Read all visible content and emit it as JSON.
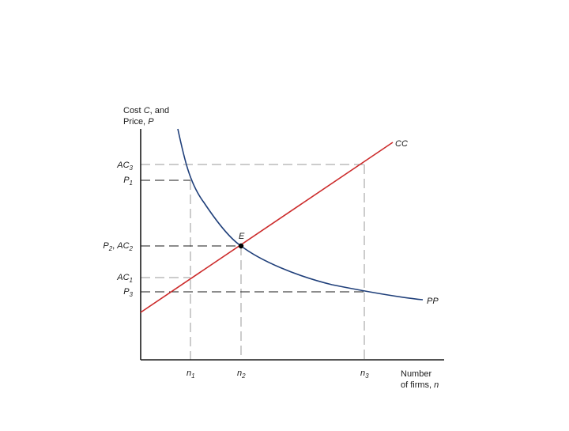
{
  "diagram": {
    "y_axis_label": {
      "line1": {
        "t1": "Cost ",
        "t2": "C",
        "t3": ", and"
      },
      "line2": {
        "t1": "Price, ",
        "t2": "P"
      }
    },
    "x_axis_label": {
      "line1": "Number",
      "line2": {
        "t1": "of firms, ",
        "t2": "n"
      }
    },
    "curves": {
      "cc": {
        "label": "CC",
        "color": "#cc2b2b"
      },
      "pp": {
        "label": "PP",
        "color": "#1f3f7a"
      }
    },
    "equilibrium": {
      "label": "E"
    },
    "y_ticks": {
      "ac3": {
        "base": "AC",
        "sub": "3"
      },
      "p1": {
        "base": "P",
        "sub": "1"
      },
      "p2ac2": {
        "b1": "P",
        "s1": "2",
        "mid": ", ",
        "b2": "AC",
        "s2": "2"
      },
      "ac1": {
        "base": "AC",
        "sub": "1"
      },
      "p3": {
        "base": "P",
        "sub": "3"
      }
    },
    "x_ticks": {
      "n1": {
        "base": "n",
        "sub": "1"
      },
      "n2": {
        "base": "n",
        "sub": "2"
      },
      "n3": {
        "base": "n",
        "sub": "3"
      }
    },
    "guide_color": "#9a9a9a",
    "axis_color": "#1a1a1a"
  }
}
